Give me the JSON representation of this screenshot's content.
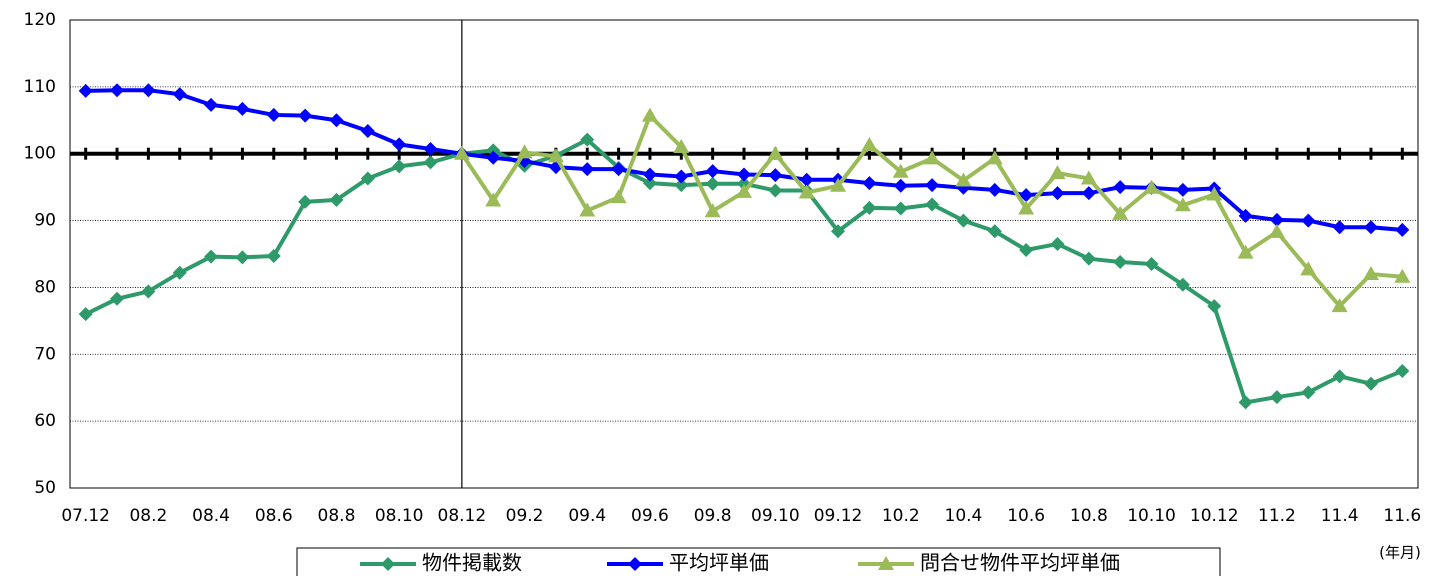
{
  "chart_data": {
    "type": "line",
    "x_label": "(年月)",
    "categories": [
      "07.12",
      null,
      "08.2",
      null,
      "08.4",
      null,
      "08.6",
      null,
      "08.8",
      null,
      "08.10",
      null,
      "08.12",
      null,
      "09.2",
      null,
      "09.4",
      null,
      "09.6",
      null,
      "09.8",
      null,
      "09.10",
      null,
      "09.12",
      null,
      "10.2",
      null,
      "10.4",
      null,
      "10.6",
      null,
      "10.8",
      null,
      "10.10",
      null,
      "10.12",
      null,
      "11.2",
      null,
      "11.4",
      null,
      "11.6"
    ],
    "series": [
      {
        "name": "物件掲載数",
        "color": "#2e9a6a",
        "marker": "diamond",
        "values": [
          76,
          78.3,
          79.4,
          82.2,
          84.6,
          84.5,
          84.7,
          92.8,
          93.1,
          96.3,
          98.1,
          98.7,
          100,
          100.5,
          98.2,
          99.7,
          102.1,
          97.9,
          95.6,
          95.3,
          95.5,
          95.5,
          94.5,
          94.5,
          88.4,
          91.9,
          91.8,
          92.4,
          90,
          88.4,
          85.6,
          86.5,
          84.3,
          83.8,
          83.5,
          80.4,
          77.2,
          62.8,
          63.6,
          64.3,
          66.7,
          65.6,
          67.5
        ]
      },
      {
        "name": "平均坪単価",
        "color": "#0000ff",
        "marker": "diamond",
        "values": [
          109.4,
          109.5,
          109.5,
          108.9,
          107.3,
          106.7,
          105.8,
          105.7,
          105,
          103.4,
          101.4,
          100.7,
          100,
          99.4,
          98.9,
          98,
          97.7,
          97.7,
          96.9,
          96.6,
          97.4,
          96.9,
          96.8,
          96.1,
          96.1,
          95.6,
          95.2,
          95.3,
          94.9,
          94.6,
          93.8,
          94.1,
          94.1,
          95,
          94.9,
          94.6,
          94.8,
          90.7,
          90.1,
          90,
          89,
          89,
          88.6
        ]
      },
      {
        "name": "問合せ物件平均坪単価",
        "color": "#9bbb59",
        "marker": "triangle",
        "values": [
          null,
          null,
          null,
          null,
          null,
          null,
          null,
          null,
          null,
          null,
          null,
          null,
          100,
          93,
          100.2,
          99.6,
          91.5,
          93.5,
          105.7,
          101,
          91.4,
          94.3,
          100,
          94.2,
          95.2,
          101.3,
          97.3,
          99.3,
          96,
          99.3,
          91.8,
          97.1,
          96.3,
          91,
          94.9,
          92.3,
          93.9,
          85.2,
          88.3,
          82.7,
          77.2,
          82,
          81.6
        ]
      }
    ],
    "ylim": [
      50,
      120
    ],
    "yticks": [
      50,
      60,
      70,
      80,
      90,
      100,
      110,
      120
    ],
    "grid": true,
    "reference_line": {
      "y": 100,
      "x": "08.12"
    },
    "legend": "bottom"
  }
}
